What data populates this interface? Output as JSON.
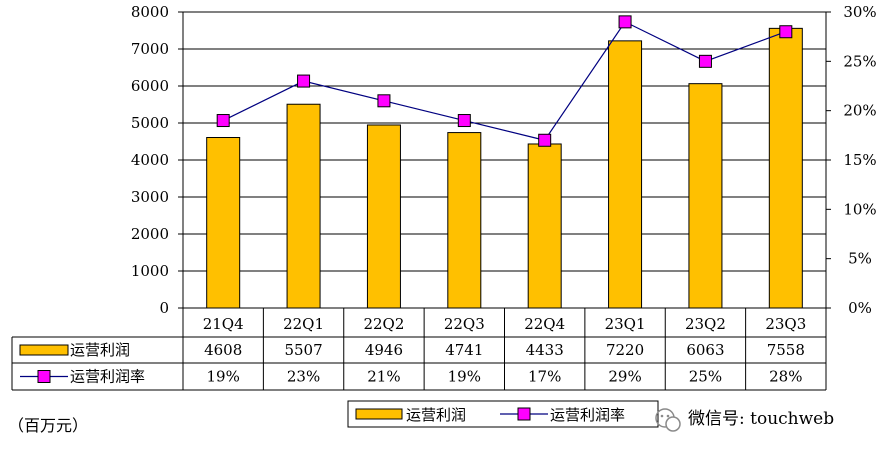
{
  "chart_data": {
    "type": "bar",
    "categories": [
      "21Q4",
      "22Q1",
      "22Q2",
      "22Q3",
      "22Q4",
      "23Q1",
      "23Q2",
      "23Q3"
    ],
    "series": [
      {
        "name": "运营利润",
        "type": "bar",
        "axis": "left",
        "color": "#ffc000",
        "values": [
          4608,
          5507,
          4946,
          4741,
          4433,
          7220,
          6063,
          7558
        ]
      },
      {
        "name": "运营利润率",
        "type": "line",
        "axis": "right",
        "color": "#ff00ff",
        "values": [
          19,
          23,
          21,
          19,
          17,
          29,
          25,
          28
        ]
      }
    ],
    "table_rows": [
      {
        "label": "运营利润",
        "cells": [
          "4608",
          "5507",
          "4946",
          "4741",
          "4433",
          "7220",
          "6063",
          "7558"
        ]
      },
      {
        "label": "运营利润率",
        "cells": [
          "19%",
          "23%",
          "21%",
          "19%",
          "17%",
          "29%",
          "25%",
          "28%"
        ]
      }
    ],
    "y_left": {
      "ylim": [
        0,
        8000
      ],
      "ticks": [
        "0",
        "1000",
        "2000",
        "3000",
        "4000",
        "5000",
        "6000",
        "7000",
        "8000"
      ]
    },
    "y_right": {
      "ylim": [
        0,
        30
      ],
      "ticks": [
        "0%",
        "5%",
        "10%",
        "15%",
        "20%",
        "25%",
        "30%"
      ]
    },
    "grid": true,
    "legend_position": "bottom-center",
    "legend": [
      "运营利润",
      "运营利润率"
    ],
    "unit_note": "（百万元）",
    "watermark": "微信号: touchweb"
  }
}
